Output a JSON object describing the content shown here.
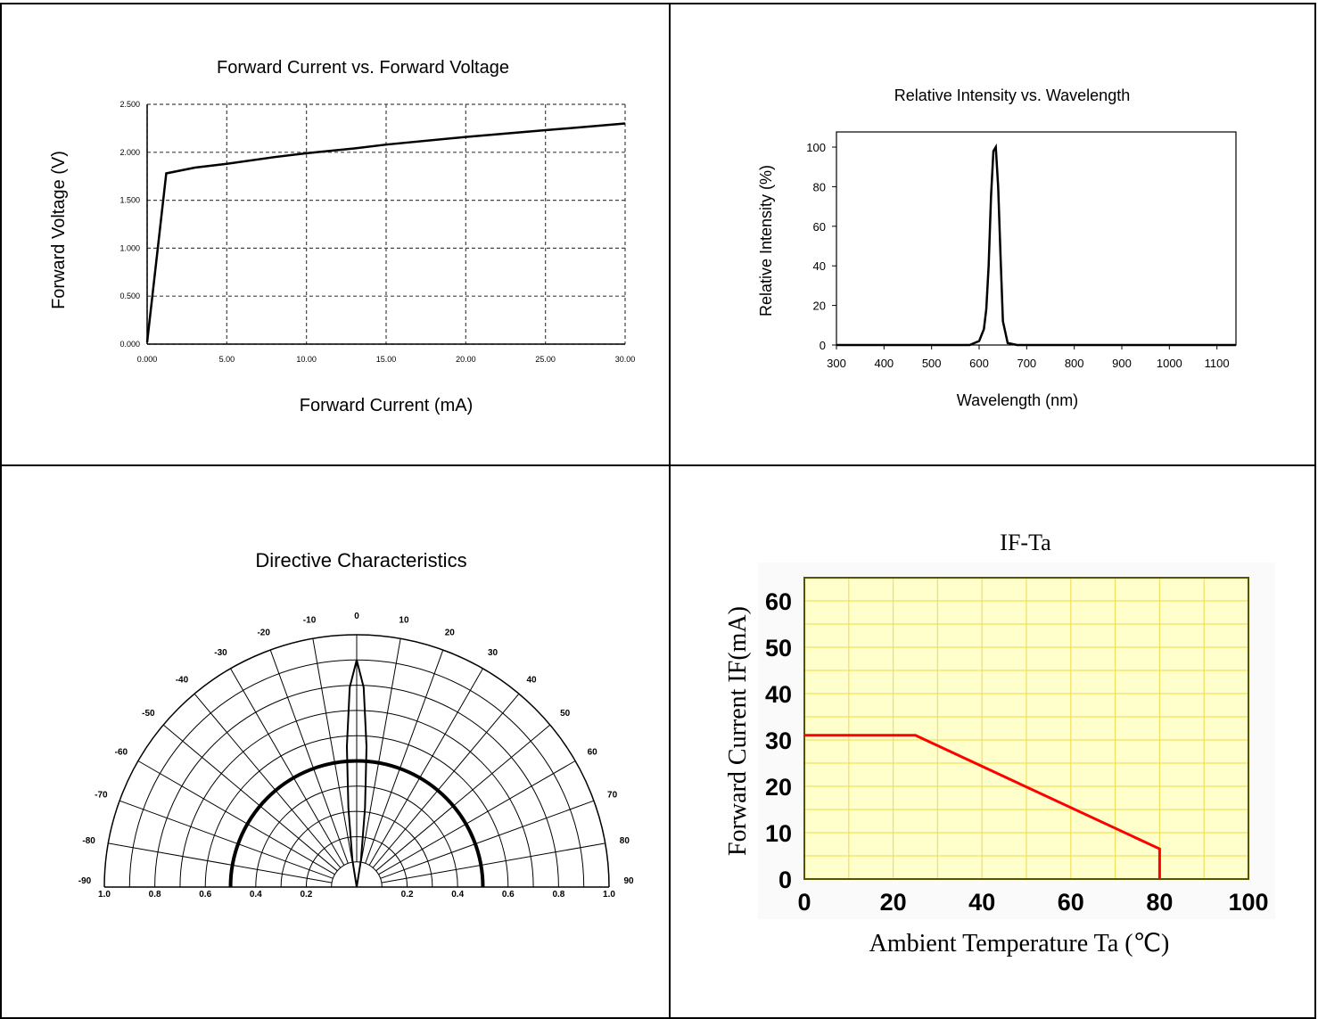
{
  "chart_data": [
    {
      "type": "line",
      "title": "Forward Current vs. Forward Voltage",
      "xlabel": "Forward Current (mA)",
      "ylabel": "Forward Voltage (V)",
      "xlim": [
        0,
        30
      ],
      "ylim": [
        0,
        2.5
      ],
      "xticks": [
        "0.000",
        "5.00",
        "10.00",
        "15.00",
        "20.00",
        "25.00",
        "30.00"
      ],
      "yticks": [
        "0.000",
        "0.500",
        "1.000",
        "1.500",
        "2.000",
        "2.500"
      ],
      "grid": true,
      "series": [
        {
          "x": [
            0,
            1.2,
            3,
            5,
            8,
            10,
            13,
            15,
            20,
            25,
            30
          ],
          "y": [
            0.02,
            1.78,
            1.84,
            1.88,
            1.95,
            1.99,
            2.04,
            2.08,
            2.16,
            2.23,
            2.3
          ]
        }
      ]
    },
    {
      "type": "line",
      "title": "Relative Intensity vs. Wavelength",
      "xlabel": "Wavelength (nm)",
      "ylabel": "Relative Intensity (%)",
      "xlim": [
        300,
        1140
      ],
      "ylim": [
        0,
        100
      ],
      "xticks": [
        "300",
        "400",
        "500",
        "600",
        "700",
        "800",
        "900",
        "1000",
        "1100"
      ],
      "yticks": [
        "0",
        "20",
        "40",
        "60",
        "80",
        "100"
      ],
      "grid": false,
      "series": [
        {
          "x": [
            300,
            580,
            600,
            610,
            615,
            620,
            625,
            630,
            635,
            640,
            645,
            650,
            660,
            680,
            1140
          ],
          "y": [
            0,
            0,
            2,
            8,
            18,
            40,
            75,
            98,
            100,
            80,
            45,
            12,
            1,
            0,
            0
          ]
        }
      ]
    },
    {
      "type": "polar",
      "title": "Directive Characteristics",
      "angle_labels": [
        "0",
        "10",
        "20",
        "30",
        "40",
        "50",
        "60",
        "70",
        "80",
        "90",
        "-10",
        "-20",
        "-30",
        "-40",
        "-50",
        "-60",
        "-70",
        "-80",
        "-90"
      ],
      "radius_labels": [
        "1.0",
        "0.8",
        "0.6",
        "0.4",
        "0.2",
        "0.2",
        "0.4",
        "0.6",
        "0.8",
        "1.0"
      ],
      "reference_radius": 0.5,
      "series": [
        {
          "angle": [
            -12,
            -9,
            -6,
            -4,
            -2,
            0,
            2,
            4,
            6,
            9,
            12
          ],
          "r": [
            0,
            0.12,
            0.35,
            0.62,
            0.88,
            1.0,
            0.88,
            0.62,
            0.35,
            0.12,
            0
          ]
        }
      ]
    },
    {
      "type": "line",
      "title": "IF-Ta",
      "xlabel": "Ambient Temperature Ta (℃)",
      "ylabel": "Forward Current IF(mA)",
      "xlim": [
        0,
        100
      ],
      "ylim": [
        0,
        65
      ],
      "xticks": [
        "0",
        "20",
        "40",
        "60",
        "80",
        "100"
      ],
      "yticks": [
        "0",
        "10",
        "20",
        "30",
        "40",
        "50",
        "60"
      ],
      "grid": true,
      "series": [
        {
          "x": [
            0,
            25,
            80,
            80
          ],
          "y": [
            31,
            31,
            6.5,
            0
          ]
        }
      ]
    }
  ],
  "colors": {
    "line": "#000000",
    "derating": "#ff0000",
    "grid_fill": "#ffffcc",
    "grid_line": "#f0e060",
    "plot_border": "#555500"
  }
}
